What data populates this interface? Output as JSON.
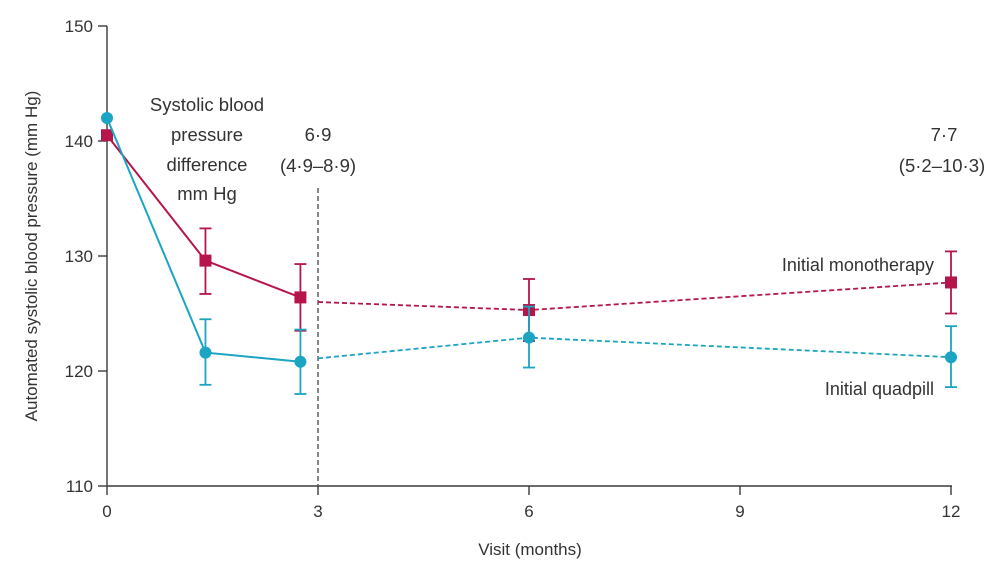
{
  "chart_data": {
    "type": "line",
    "title": "",
    "xlabel": "Visit (months)",
    "ylabel": "Automated systolic blood pressure (mm Hg)",
    "xlim": [
      0,
      12
    ],
    "ylim": [
      110,
      150
    ],
    "x_ticks": [
      0,
      3,
      6,
      9,
      12
    ],
    "x_tick_labels": [
      "0",
      "3",
      "6",
      "9",
      "12"
    ],
    "y_ticks": [
      110,
      120,
      130,
      140,
      150
    ],
    "y_tick_labels": [
      "110",
      "120",
      "130",
      "140",
      "150"
    ],
    "divider_x": 3,
    "annotation": {
      "heading_lines": [
        "Systolic blood",
        "pressure",
        "difference",
        "mm Hg"
      ],
      "month3_value": "6·9",
      "month3_ci": "(4·9–8·9)",
      "month12_value": "7·7",
      "month12_ci": "(5·2–10·3)"
    },
    "series": [
      {
        "name": "Initial monotherapy",
        "color": "#b5154b",
        "marker": "square",
        "x": [
          0,
          1.4,
          2.75,
          6,
          12
        ],
        "values": [
          140.5,
          129.6,
          126.4,
          125.3,
          127.7
        ],
        "err_low": [
          null,
          126.7,
          123.5,
          122.6,
          125.0
        ],
        "err_high": [
          null,
          132.4,
          129.3,
          128.0,
          130.4
        ],
        "solid_until_index": 2,
        "dashed_start": [
          3,
          126.0
        ]
      },
      {
        "name": "Initial quadpill",
        "color": "#1ba5c3",
        "marker": "circle",
        "x": [
          0,
          1.4,
          2.75,
          6,
          12
        ],
        "values": [
          142.0,
          121.6,
          120.8,
          122.9,
          121.2
        ],
        "err_low": [
          null,
          118.8,
          118.0,
          120.3,
          118.6
        ],
        "err_high": [
          null,
          124.5,
          123.6,
          125.6,
          123.9
        ],
        "solid_until_index": 2,
        "dashed_start": [
          3,
          121.1
        ]
      }
    ]
  }
}
